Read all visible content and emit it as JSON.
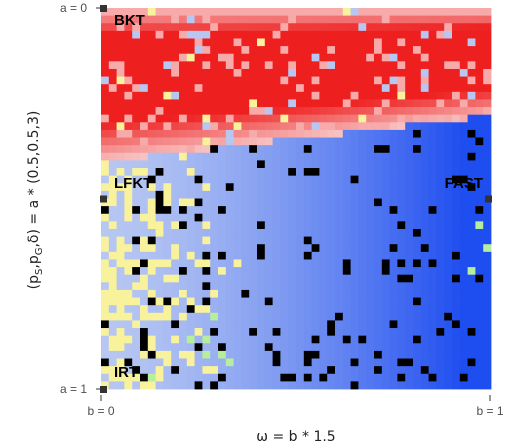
{
  "chart_data": {
    "type": "heatmap",
    "grid": {
      "rows": 50,
      "cols": 50
    },
    "x_range": [
      0,
      1
    ],
    "y_range": [
      0,
      1
    ],
    "y_reversed": true,
    "xlabel": "ω = b * 1.5",
    "ylabel_main": "(p",
    "ylabel_sub1": "S",
    "ylabel_mid": ",p",
    "ylabel_sub2": "G",
    "ylabel_tail": ",δ) = a * (0.5,0.5,3)",
    "x_ticks": [
      {
        "value": 0,
        "label": "b = 0"
      },
      {
        "value": 1,
        "label": "b = 1"
      }
    ],
    "y_ticks": [
      {
        "value": 0,
        "label": "a = 0"
      },
      {
        "value": 1,
        "label": "a = 1"
      }
    ],
    "y_marks": [
      0,
      0.5,
      1
    ],
    "x_marks": [
      1
    ],
    "region_labels": [
      {
        "name": "BKT",
        "a": 0.02,
        "b": 0.03
      },
      {
        "name": "LFKT",
        "a": 0.45,
        "b": 0.03
      },
      {
        "name": "FAST",
        "a": 0.45,
        "b": 0.97
      },
      {
        "name": "IRT",
        "a": 0.96,
        "b": 0.03
      }
    ],
    "colors": {
      "bkt": "#ee1f1f",
      "bkt_light": "#f7aaaa",
      "fast": "#1f4ef0",
      "lfkt_light": "#b7c7f2",
      "irt": "#f8f29c",
      "green": "#b6ee9c",
      "pink": "#f8c2c2"
    }
  }
}
